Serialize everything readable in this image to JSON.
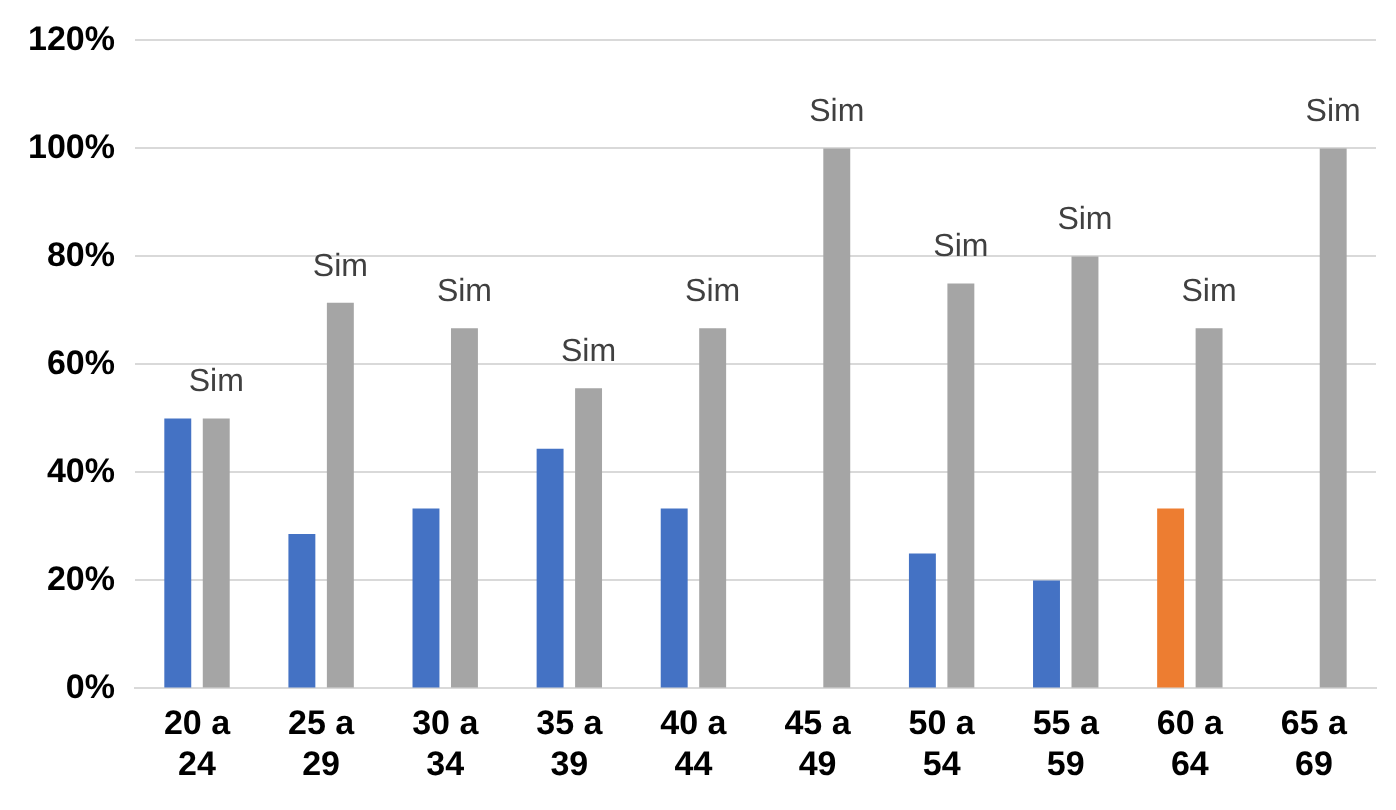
{
  "chart_data": {
    "type": "bar",
    "categories": [
      "20 a 24",
      "25 a 29",
      "30 a 34",
      "35 a 39",
      "40 a 44",
      "45 a 49",
      "50 a 54",
      "55 a 59",
      "60 a 64",
      "65 a 69"
    ],
    "series": [
      {
        "colors": [
          "#4472c4",
          "#4472c4",
          "#4472c4",
          "#4472c4",
          "#4472c4",
          "#4472c4",
          "#4472c4",
          "#4472c4",
          "#ed7d31",
          "#4472c4"
        ],
        "values": [
          50,
          28.6,
          33.3,
          44.4,
          33.3,
          0,
          25,
          20,
          33.3,
          0
        ]
      },
      {
        "color": "#a5a5a5",
        "values": [
          50,
          71.4,
          66.7,
          55.6,
          66.7,
          100,
          75,
          80,
          66.7,
          100
        ]
      }
    ],
    "ylim": [
      0,
      120
    ],
    "yticks": [
      {
        "value": 0,
        "label": "0%"
      },
      {
        "value": 20,
        "label": "20%"
      },
      {
        "value": 40,
        "label": "40%"
      },
      {
        "value": 60,
        "label": "60%"
      },
      {
        "value": 80,
        "label": "80%"
      },
      {
        "value": 100,
        "label": "100%"
      },
      {
        "value": 120,
        "label": "120%"
      }
    ],
    "grid": "y",
    "legend": false,
    "annotations": [
      {
        "text": "Sim",
        "x": "20 a 24",
        "y": 50
      },
      {
        "text": "Sim",
        "x": "25 a 29",
        "y": 71.4
      },
      {
        "text": "Sim",
        "x": "30 a 34",
        "y": 66.7
      },
      {
        "text": "Sim",
        "x": "35 a 39",
        "y": 55.6
      },
      {
        "text": "Sim",
        "x": "40 a 44",
        "y": 66.7
      },
      {
        "text": "Sim",
        "x": "45 a 49",
        "y": 100
      },
      {
        "text": "Sim",
        "x": "50 a 54",
        "y": 75
      },
      {
        "text": "Sim",
        "x": "55 a 59",
        "y": 80
      },
      {
        "text": "Sim",
        "x": "60 a 64",
        "y": 66.7
      },
      {
        "text": "Sim",
        "x": "65 a 69",
        "y": 100
      }
    ]
  }
}
